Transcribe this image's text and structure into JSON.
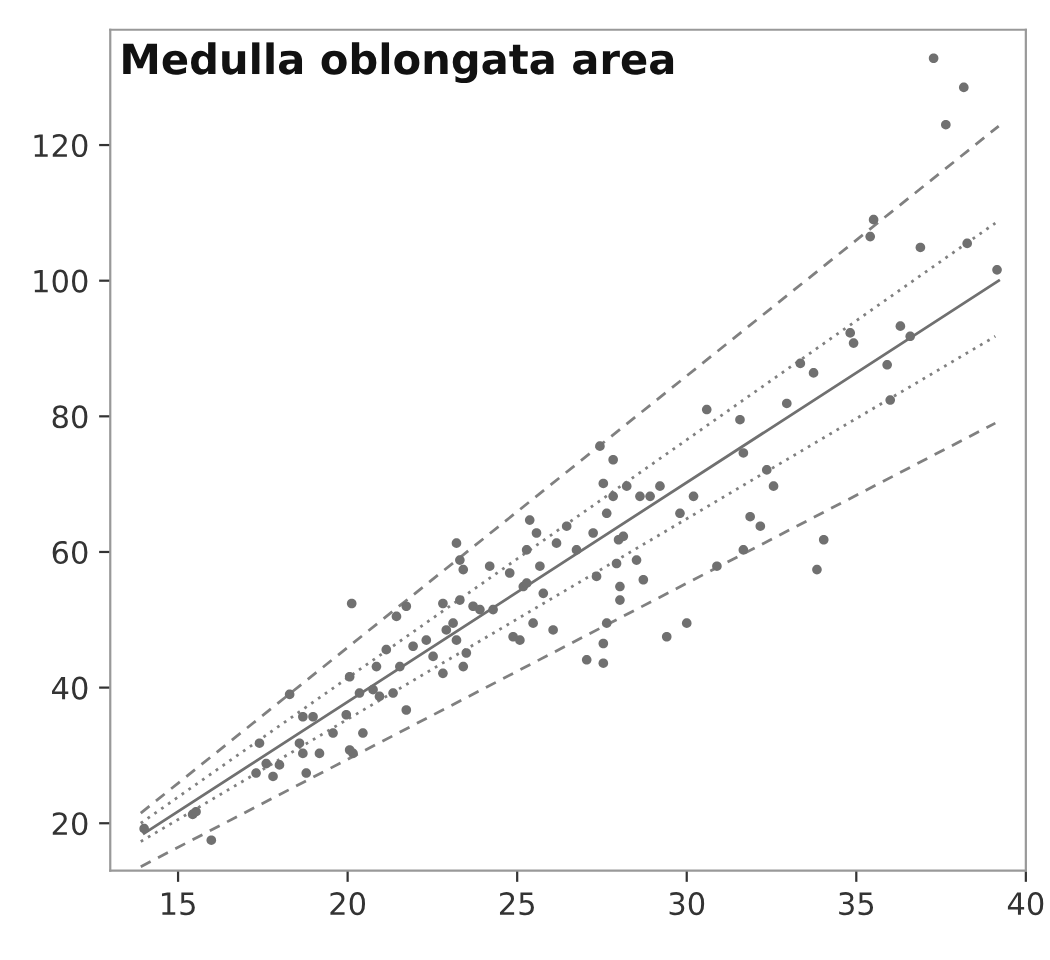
{
  "chart_data": {
    "type": "scatter",
    "title": "Medulla oblongata area",
    "xlim": [
      13,
      40
    ],
    "ylim": [
      13,
      137
    ],
    "xticks": [
      15,
      20,
      25,
      30,
      35,
      40
    ],
    "yticks": [
      20,
      40,
      60,
      80,
      100,
      120
    ],
    "grid": false,
    "legend": false,
    "marker": "circle",
    "series": [
      {
        "color": "#707070",
        "x": [
          14.0,
          15.43,
          15.53,
          15.98,
          17.4,
          17.3,
          17.6,
          17.8,
          17.99,
          18.29,
          18.68,
          18.98,
          18.58,
          18.68,
          18.78,
          19.17,
          19.57,
          19.96,
          20.06,
          20.16,
          20.06,
          20.12,
          20.35,
          20.45,
          20.75,
          20.85,
          20.94,
          21.14,
          21.34,
          21.44,
          21.73,
          21.73,
          21.54,
          21.93,
          22.32,
          22.52,
          22.81,
          22.81,
          22.91,
          23.11,
          23.21,
          23.31,
          23.41,
          23.21,
          23.31,
          23.41,
          23.5,
          23.7,
          23.9,
          24.19,
          24.29,
          24.78,
          24.88,
          25.08,
          25.18,
          25.28,
          25.28,
          25.37,
          25.47,
          25.57,
          25.67,
          25.77,
          26.06,
          26.16,
          26.46,
          26.75,
          27.05,
          27.24,
          27.34,
          27.44,
          27.54,
          27.64,
          27.83,
          27.93,
          28.03,
          27.64,
          27.54,
          27.54,
          27.83,
          27.99,
          28.13,
          28.23,
          28.03,
          28.52,
          28.72,
          28.62,
          28.92,
          29.21,
          29.41,
          29.8,
          30.0,
          30.2,
          30.59,
          30.89,
          31.57,
          31.67,
          31.67,
          31.87,
          32.17,
          32.36,
          32.56,
          32.95,
          33.35,
          33.74,
          33.84,
          34.04,
          34.82,
          34.92,
          35.41,
          35.51,
          35.91,
          36.0,
          36.3,
          36.59,
          36.89,
          37.28,
          37.64,
          38.17,
          38.27,
          39.15
        ],
        "values": [
          19.2,
          21.3,
          21.7,
          17.5,
          31.8,
          27.4,
          28.8,
          26.9,
          28.6,
          39.0,
          35.7,
          35.7,
          31.8,
          30.3,
          27.4,
          30.3,
          33.3,
          36.0,
          30.8,
          30.3,
          41.6,
          52.4,
          39.2,
          33.3,
          39.7,
          43.1,
          38.7,
          45.6,
          39.2,
          50.5,
          52.0,
          36.7,
          43.1,
          46.1,
          47.0,
          44.6,
          52.4,
          42.1,
          48.5,
          49.5,
          61.3,
          58.8,
          57.4,
          47.0,
          52.9,
          43.1,
          45.1,
          52.0,
          51.5,
          57.9,
          51.5,
          56.9,
          47.5,
          47.0,
          54.9,
          60.3,
          55.4,
          64.7,
          49.5,
          62.8,
          57.9,
          53.9,
          48.5,
          61.3,
          63.8,
          60.3,
          44.1,
          62.8,
          56.4,
          75.6,
          70.1,
          65.7,
          73.6,
          58.3,
          54.9,
          49.5,
          46.5,
          43.6,
          68.2,
          61.8,
          62.3,
          69.7,
          52.9,
          58.8,
          55.9,
          68.2,
          68.2,
          69.7,
          47.5,
          65.7,
          49.5,
          68.2,
          81.0,
          57.9,
          79.5,
          74.6,
          60.3,
          65.2,
          63.8,
          72.1,
          69.7,
          81.9,
          87.8,
          86.4,
          57.4,
          61.8,
          92.3,
          90.8,
          106.5,
          109.0,
          87.6,
          82.4,
          93.3,
          91.8,
          104.9,
          132.8,
          123.0,
          128.5,
          105.5,
          101.6
        ]
      },
      {
        "type": "line",
        "color": "#707070",
        "line_style": "solid",
        "marker": "none",
        "x": [
          14,
          39.2
        ],
        "values": [
          18.5,
          100
        ]
      },
      {
        "type": "line",
        "color": "#808080",
        "line_style": "dotted",
        "marker": "none",
        "x": [
          13.9,
          39.1
        ],
        "values": [
          20,
          108.5
        ]
      },
      {
        "type": "line",
        "color": "#808080",
        "line_style": "dotted",
        "marker": "none",
        "x": [
          13.9,
          39.1
        ],
        "values": [
          17.3,
          91.8
        ]
      },
      {
        "type": "line",
        "color": "#808080",
        "line_style": "dashed",
        "marker": "none",
        "x": [
          13.9,
          39.2
        ],
        "values": [
          21.5,
          122.8
        ]
      },
      {
        "type": "line",
        "color": "#808080",
        "line_style": "dashed",
        "marker": "none",
        "x": [
          13.9,
          39.1
        ],
        "values": [
          13.6,
          79
        ]
      }
    ]
  }
}
